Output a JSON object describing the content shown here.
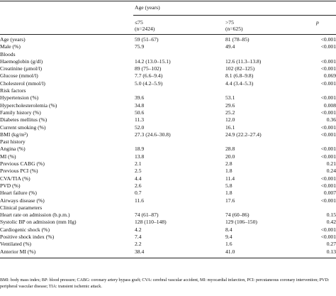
{
  "header": {
    "group": "Age (years)",
    "col1_range": "≤75",
    "col1_n": "(n=2424)",
    "col2_range": ">75",
    "col2_n": "(n=625)",
    "p": "p"
  },
  "rows": [
    {
      "label": "Age (years)",
      "c1": "59 (51–67)",
      "c2": "81 (78–85)",
      "p": "<0.001"
    },
    {
      "label": "Male (%)",
      "c1": "75.9",
      "c2": "49.4",
      "p": "<0.001"
    },
    {
      "label": "Bloods",
      "c1": "",
      "c2": "",
      "p": ""
    },
    {
      "label": "Haemoglobin (g/dl)",
      "c1": "14.2 (13.0–15.1)",
      "c2": "12.6 (11.3–13.8)",
      "p": "<0.001"
    },
    {
      "label": "Creatinine (µmol/l)",
      "c1": "89 (75–102)",
      "c2": "102 (82–125)",
      "p": "<0.001"
    },
    {
      "label": "Glucose (mmol/l)",
      "c1": "7.7 (6.6–9.4)",
      "c2": "8.1 (6.8–9.8)",
      "p": "0.069"
    },
    {
      "label": "Cholesterol (mmol/l)",
      "c1": "5.0 (4.2–5.9)",
      "c2": "4.4 (3.4–5.3)",
      "p": "<0.001"
    },
    {
      "label": "Risk factors",
      "c1": "",
      "c2": "",
      "p": ""
    },
    {
      "label": "Hypertension (%)",
      "c1": "39.6",
      "c2": "53.1",
      "p": "<0.001"
    },
    {
      "label": "Hypercholesterolemia (%)",
      "c1": "34.8",
      "c2": "29.6",
      "p": "0.008"
    },
    {
      "label": "Family history (%)",
      "c1": "50.6",
      "c2": "25.2",
      "p": "<0.001"
    },
    {
      "label": "Diabetes mellitus (%)",
      "c1": "11.3",
      "c2": "12.0",
      "p": "0.36"
    },
    {
      "label": "Current smoking (%)",
      "c1": "52.0",
      "c2": "16.1",
      "p": "<0.001"
    },
    {
      "label": "BMI (kg/m²)",
      "c1": "27.3 (24.6–30.8)",
      "c2": "24.9 (22.2–27.4)",
      "p": "<0.001"
    },
    {
      "label": "Past history",
      "c1": "",
      "c2": "",
      "p": ""
    },
    {
      "label": "Angina (%)",
      "c1": "18.9",
      "c2": "28.8",
      "p": "<0.001"
    },
    {
      "label": "MI (%)",
      "c1": "13.8",
      "c2": "20.0",
      "p": "<0.001"
    },
    {
      "label": "Previous CABG (%)",
      "c1": "2.1",
      "c2": "2.8",
      "p": "0.21"
    },
    {
      "label": "Previous PCI (%)",
      "c1": "2.5",
      "c2": "1.8",
      "p": "0.24"
    },
    {
      "label": "CVA/TIA (%)",
      "c1": "4.4",
      "c2": "11.4",
      "p": "<0.001"
    },
    {
      "label": "PVD (%)",
      "c1": "2.6",
      "c2": "5.8",
      "p": "<0.001"
    },
    {
      "label": "Heart failure (%)",
      "c1": "0.7",
      "c2": "1.8",
      "p": "0.007"
    },
    {
      "label": "Airways disease (%)",
      "c1": "11.6",
      "c2": "17.6",
      "p": "<0.001"
    },
    {
      "label": "Clinical parameters",
      "c1": "",
      "c2": "",
      "p": ""
    },
    {
      "label": "Heart rate on admission (b.p.m.)",
      "c1": "74 (61–87)",
      "c2": "74 (60–86)",
      "p": "0.15"
    },
    {
      "label": "Systolic BP on admission (mm Hg)",
      "c1": "128 (110–148)",
      "c2": "129 (106–150)",
      "p": "0.42"
    },
    {
      "label": "Cardiogenic shock (%)",
      "c1": "4.2",
      "c2": "8.4",
      "p": "<0.001"
    },
    {
      "label": "Positive shock index (%)",
      "c1": "7.4",
      "c2": "9.4",
      "p": "<0.001"
    },
    {
      "label": "Ventilated (%)",
      "c1": "2.2",
      "c2": "1.6",
      "p": "0.27"
    },
    {
      "label": "Anterior MI (%)",
      "c1": "38.4",
      "c2": "41.0",
      "p": "0.13"
    }
  ],
  "footnote": "BMI: body mass index; BP: blood pressure; CABG: coronary artery bypass graft; CVA: cerebral vascular accident, MI: myocardial infarction, PCI: percutaneous coronary intervention; PVD: peripheral vascular disease; TIA: transient ischemic attack."
}
